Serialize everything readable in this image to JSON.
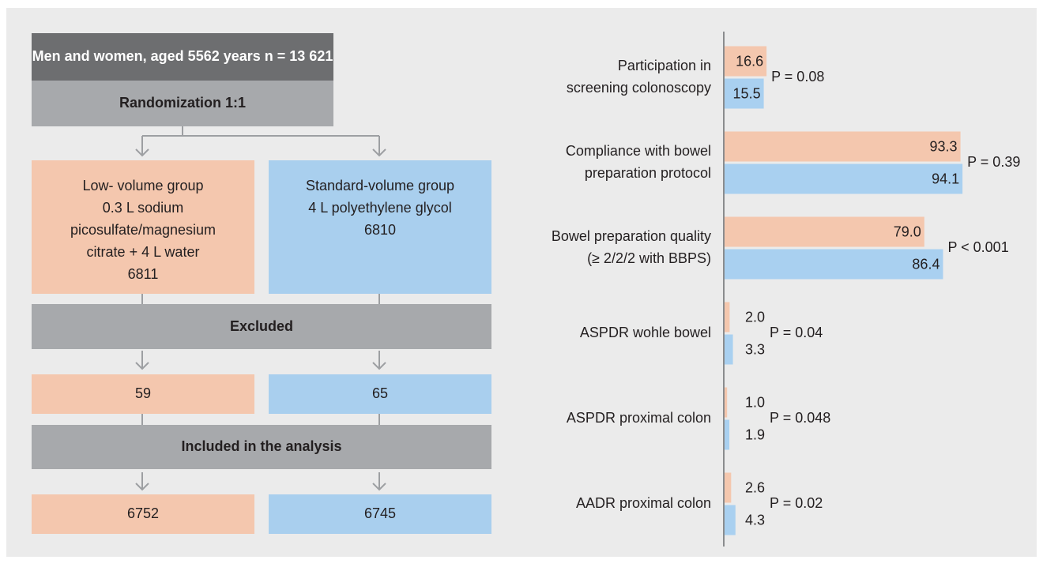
{
  "flow": {
    "top": "Men and women, aged 5562 years n = 13 621",
    "randomization": "Randomization 1:1",
    "low_volume": [
      "Low- volume group",
      "0.3 L sodium",
      "picosulfate/magnesium",
      "citrate + 4 L water",
      "6811"
    ],
    "standard_volume": [
      "Standard-volume group",
      "4 L polyethylene glycol",
      "6810"
    ],
    "excluded": "Excluded",
    "excluded_low": "59",
    "excluded_standard": "65",
    "included": "Included in the analysis",
    "included_low": "6752",
    "included_standard": "6745"
  },
  "chart_data": {
    "type": "bar",
    "orientation": "horizontal",
    "categories": [
      "Participation in\nscreening colonoscopy",
      "Compliance with bowel\npreparation protocol",
      "Bowel preparation quality\n(≥ 2/2/2 with BBPS)",
      "ASPDR wohle bowel",
      "ASPDR proximal colon",
      "AADR proximal colon"
    ],
    "series": [
      {
        "color": "#f4c7ae",
        "values": [
          16.6,
          93.3,
          79.0,
          2.0,
          1.0,
          2.6
        ],
        "value_labels": [
          "16.6",
          "93.3",
          "79.0",
          "2.0",
          "1.0",
          "2.6"
        ]
      },
      {
        "color": "#a9d0f0",
        "values": [
          15.5,
          94.1,
          86.4,
          3.3,
          1.9,
          4.3
        ],
        "value_labels": [
          "15.5",
          "94.1",
          "86.4",
          "3.3",
          "1.9",
          "4.3"
        ]
      }
    ],
    "annotations": [
      "P = 0.08",
      "P = 0.39",
      "P < 0.001",
      "P = 0.04",
      "P = 0.048",
      "P = 0.02"
    ],
    "xlim": [
      0,
      100
    ]
  }
}
